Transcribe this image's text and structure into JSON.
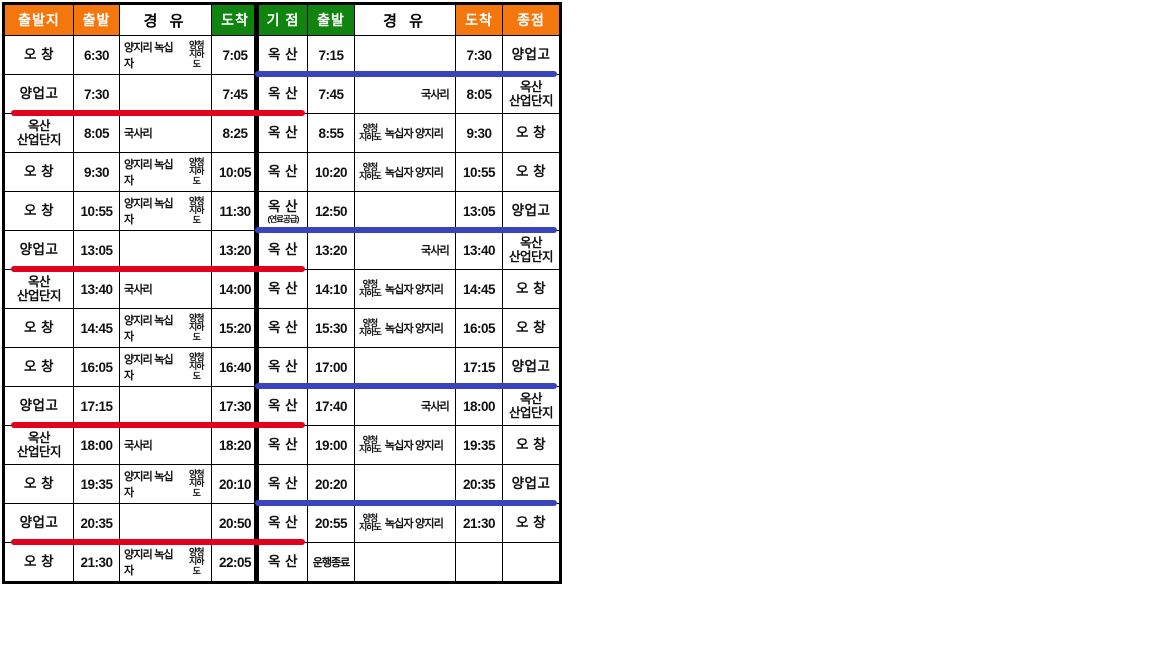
{
  "colors": {
    "header_orange": "#F4770E",
    "header_green": "#11830F",
    "red_line": "#E1001E",
    "blue_line": "#3A45BD",
    "grid_line": "#000000"
  },
  "left_table": {
    "headers": [
      {
        "label": "출발지",
        "style": "orange"
      },
      {
        "label": "출발",
        "style": "orange"
      },
      {
        "label": "경 유",
        "style": "white"
      },
      {
        "label": "도착",
        "style": "green"
      }
    ],
    "rows": [
      {
        "from": "오 창",
        "from2": "",
        "depart": "6:30",
        "via": {
          "pre": "양지리 녹십자",
          "stack": [
            "양청",
            "지하도"
          ],
          "post": "",
          "align": "left"
        },
        "arrive": "7:05",
        "underline": ""
      },
      {
        "from": "양업고",
        "from2": "",
        "depart": "7:30",
        "via": {
          "pre": "",
          "stack": [],
          "post": "",
          "align": "left"
        },
        "arrive": "7:45",
        "underline": "red"
      },
      {
        "from": "옥산",
        "from2": "산업단지",
        "depart": "8:05",
        "via": {
          "pre": "국사리",
          "stack": [],
          "post": "",
          "align": "left"
        },
        "arrive": "8:25",
        "underline": ""
      },
      {
        "from": "오 창",
        "from2": "",
        "depart": "9:30",
        "via": {
          "pre": "양지리 녹십자",
          "stack": [
            "양청",
            "지하도"
          ],
          "post": "",
          "align": "left"
        },
        "arrive": "10:05",
        "underline": ""
      },
      {
        "from": "오 창",
        "from2": "",
        "depart": "10:55",
        "via": {
          "pre": "양지리 녹십자",
          "stack": [
            "양청",
            "지하도"
          ],
          "post": "",
          "align": "left"
        },
        "arrive": "11:30",
        "underline": ""
      },
      {
        "from": "양업고",
        "from2": "",
        "depart": "13:05",
        "via": {
          "pre": "",
          "stack": [],
          "post": "",
          "align": "left"
        },
        "arrive": "13:20",
        "underline": "red"
      },
      {
        "from": "옥산",
        "from2": "산업단지",
        "depart": "13:40",
        "via": {
          "pre": "국사리",
          "stack": [],
          "post": "",
          "align": "left"
        },
        "arrive": "14:00",
        "underline": ""
      },
      {
        "from": "오 창",
        "from2": "",
        "depart": "14:45",
        "via": {
          "pre": "양지리 녹십자",
          "stack": [
            "양청",
            "지하도"
          ],
          "post": "",
          "align": "left"
        },
        "arrive": "15:20",
        "underline": ""
      },
      {
        "from": "오 창",
        "from2": "",
        "depart": "16:05",
        "via": {
          "pre": "양지리 녹십자",
          "stack": [
            "양청",
            "지하도"
          ],
          "post": "",
          "align": "left"
        },
        "arrive": "16:40",
        "underline": ""
      },
      {
        "from": "양업고",
        "from2": "",
        "depart": "17:15",
        "via": {
          "pre": "",
          "stack": [],
          "post": "",
          "align": "left"
        },
        "arrive": "17:30",
        "underline": "red"
      },
      {
        "from": "옥산",
        "from2": "산업단지",
        "depart": "18:00",
        "via": {
          "pre": "국사리",
          "stack": [],
          "post": "",
          "align": "left"
        },
        "arrive": "18:20",
        "underline": ""
      },
      {
        "from": "오 창",
        "from2": "",
        "depart": "19:35",
        "via": {
          "pre": "양지리 녹십자",
          "stack": [
            "양청",
            "지하도"
          ],
          "post": "",
          "align": "left"
        },
        "arrive": "20:10",
        "underline": ""
      },
      {
        "from": "양업고",
        "from2": "",
        "depart": "20:35",
        "via": {
          "pre": "",
          "stack": [],
          "post": "",
          "align": "left"
        },
        "arrive": "20:50",
        "underline": "red"
      },
      {
        "from": "오 창",
        "from2": "",
        "depart": "21:30",
        "via": {
          "pre": "양지리 녹십자",
          "stack": [
            "양청",
            "지하도"
          ],
          "post": "",
          "align": "left"
        },
        "arrive": "22:05",
        "underline": ""
      }
    ]
  },
  "right_table": {
    "headers": [
      {
        "label": "기 점",
        "style": "green"
      },
      {
        "label": "출발",
        "style": "green"
      },
      {
        "label": "경 유",
        "style": "white"
      },
      {
        "label": "도착",
        "style": "orange"
      },
      {
        "label": "종점",
        "style": "orange"
      }
    ],
    "rows": [
      {
        "origin": "옥 산",
        "origin_sub": "",
        "depart": "7:15",
        "depart_small": false,
        "via": {
          "pre": "",
          "stack": [],
          "post": "",
          "align": "left"
        },
        "arrive": "7:30",
        "dest": "양업고",
        "dest2": "",
        "underline": "blue"
      },
      {
        "origin": "옥 산",
        "origin_sub": "",
        "depart": "7:45",
        "depart_small": false,
        "via": {
          "pre": "국사리",
          "stack": [],
          "post": "",
          "align": "right"
        },
        "arrive": "8:05",
        "dest": "옥산",
        "dest2": "산업단지",
        "underline": ""
      },
      {
        "origin": "옥 산",
        "origin_sub": "",
        "depart": "8:55",
        "depart_small": false,
        "via": {
          "pre": "",
          "stack": [
            "양청",
            "지하도"
          ],
          "post": "녹십자 양지리",
          "align": "left"
        },
        "arrive": "9:30",
        "dest": "오 창",
        "dest2": "",
        "underline": ""
      },
      {
        "origin": "옥 산",
        "origin_sub": "",
        "depart": "10:20",
        "depart_small": false,
        "via": {
          "pre": "",
          "stack": [
            "양청",
            "지하도"
          ],
          "post": "녹십자 양지리",
          "align": "left"
        },
        "arrive": "10:55",
        "dest": "오 창",
        "dest2": "",
        "underline": ""
      },
      {
        "origin": "옥 산",
        "origin_sub": "(연료공급)",
        "depart": "12:50",
        "depart_small": false,
        "via": {
          "pre": "",
          "stack": [],
          "post": "",
          "align": "left"
        },
        "arrive": "13:05",
        "dest": "양업고",
        "dest2": "",
        "underline": "blue"
      },
      {
        "origin": "옥 산",
        "origin_sub": "",
        "depart": "13:20",
        "depart_small": false,
        "via": {
          "pre": "국사리",
          "stack": [],
          "post": "",
          "align": "right"
        },
        "arrive": "13:40",
        "dest": "옥산",
        "dest2": "산업단지",
        "underline": ""
      },
      {
        "origin": "옥 산",
        "origin_sub": "",
        "depart": "14:10",
        "depart_small": false,
        "via": {
          "pre": "",
          "stack": [
            "양청",
            "지하도"
          ],
          "post": "녹십자 양지리",
          "align": "left"
        },
        "arrive": "14:45",
        "dest": "오 창",
        "dest2": "",
        "underline": ""
      },
      {
        "origin": "옥 산",
        "origin_sub": "",
        "depart": "15:30",
        "depart_small": false,
        "via": {
          "pre": "",
          "stack": [
            "양청",
            "지하도"
          ],
          "post": "녹십자 양지리",
          "align": "left"
        },
        "arrive": "16:05",
        "dest": "오 창",
        "dest2": "",
        "underline": ""
      },
      {
        "origin": "옥 산",
        "origin_sub": "",
        "depart": "17:00",
        "depart_small": false,
        "via": {
          "pre": "",
          "stack": [],
          "post": "",
          "align": "left"
        },
        "arrive": "17:15",
        "dest": "양업고",
        "dest2": "",
        "underline": "blue"
      },
      {
        "origin": "옥 산",
        "origin_sub": "",
        "depart": "17:40",
        "depart_small": false,
        "via": {
          "pre": "국사리",
          "stack": [],
          "post": "",
          "align": "right"
        },
        "arrive": "18:00",
        "dest": "옥산",
        "dest2": "산업단지",
        "underline": ""
      },
      {
        "origin": "옥 산",
        "origin_sub": "",
        "depart": "19:00",
        "depart_small": false,
        "via": {
          "pre": "",
          "stack": [
            "양청",
            "지하도"
          ],
          "post": "녹십자 양지리",
          "align": "left"
        },
        "arrive": "19:35",
        "dest": "오 창",
        "dest2": "",
        "underline": ""
      },
      {
        "origin": "옥 산",
        "origin_sub": "",
        "depart": "20:20",
        "depart_small": false,
        "via": {
          "pre": "",
          "stack": [],
          "post": "",
          "align": "left"
        },
        "arrive": "20:35",
        "dest": "양업고",
        "dest2": "",
        "underline": "blue"
      },
      {
        "origin": "옥 산",
        "origin_sub": "",
        "depart": "20:55",
        "depart_small": false,
        "via": {
          "pre": "",
          "stack": [
            "양청",
            "지하도"
          ],
          "post": "녹십자 양지리",
          "align": "left"
        },
        "arrive": "21:30",
        "dest": "오 창",
        "dest2": "",
        "underline": ""
      },
      {
        "origin": "옥 산",
        "origin_sub": "",
        "depart": "운행종료",
        "depart_small": true,
        "via": {
          "pre": "",
          "stack": [],
          "post": "",
          "align": "left"
        },
        "arrive": "",
        "dest": "",
        "dest2": "",
        "underline": ""
      }
    ]
  }
}
